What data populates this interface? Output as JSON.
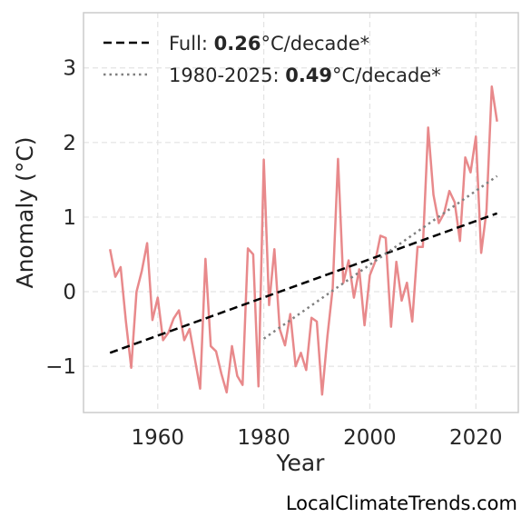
{
  "chart_data": {
    "type": "line",
    "xlabel": "Year",
    "ylabel": "Anomaly (°C)",
    "xlim": [
      1946,
      2028
    ],
    "ylim": [
      -1.62,
      3.74
    ],
    "x_ticks": [
      1960,
      1980,
      2000,
      2020
    ],
    "y_ticks": [
      -1,
      0,
      1,
      2,
      3
    ],
    "y_tick_labels": [
      "−1",
      "0",
      "1",
      "2",
      "3"
    ],
    "grid": true,
    "legend_position": "top-left",
    "series": [
      {
        "kind": "observed",
        "color": "#e8898b",
        "x": [
          1951,
          1952,
          1953,
          1954,
          1955,
          1956,
          1957,
          1958,
          1959,
          1960,
          1961,
          1962,
          1963,
          1964,
          1965,
          1966,
          1967,
          1968,
          1969,
          1970,
          1971,
          1972,
          1973,
          1974,
          1975,
          1976,
          1977,
          1978,
          1979,
          1980,
          1981,
          1982,
          1983,
          1984,
          1985,
          1986,
          1987,
          1988,
          1989,
          1990,
          1991,
          1992,
          1993,
          1994,
          1995,
          1996,
          1997,
          1998,
          1999,
          2000,
          2001,
          2002,
          2003,
          2004,
          2005,
          2006,
          2007,
          2008,
          2009,
          2010,
          2011,
          2012,
          2013,
          2014,
          2015,
          2016,
          2017,
          2018,
          2019,
          2020,
          2021,
          2022,
          2023,
          2024
        ],
        "values": [
          0.57,
          0.2,
          0.33,
          -0.4,
          -1.02,
          0.0,
          0.28,
          0.65,
          -0.38,
          -0.08,
          -0.65,
          -0.55,
          -0.36,
          -0.25,
          -0.65,
          -0.5,
          -0.9,
          -1.3,
          0.44,
          -0.73,
          -0.8,
          -1.1,
          -1.35,
          -0.73,
          -1.13,
          -1.25,
          0.58,
          0.5,
          -1.27,
          1.77,
          -0.18,
          0.57,
          -0.5,
          -0.72,
          -0.3,
          -1.0,
          -0.82,
          -1.05,
          -0.35,
          -0.4,
          -1.38,
          -0.6,
          0.05,
          1.78,
          0.12,
          0.42,
          -0.08,
          0.3,
          -0.45,
          0.22,
          0.4,
          0.75,
          0.72,
          -0.47,
          0.4,
          -0.12,
          0.12,
          -0.4,
          0.6,
          0.6,
          2.2,
          1.3,
          0.92,
          1.05,
          1.35,
          1.2,
          0.68,
          1.8,
          1.6,
          2.08,
          0.52,
          1.08,
          2.75,
          2.28
        ]
      },
      {
        "kind": "trend-full",
        "color": "#000000",
        "x": [
          1951,
          2024
        ],
        "values": [
          -0.82,
          1.05
        ]
      },
      {
        "kind": "trend-1980",
        "color": "#808080",
        "x": [
          1980,
          2024
        ],
        "values": [
          -0.63,
          1.55
        ]
      }
    ],
    "legend": [
      {
        "prefix": "Full: ",
        "bold": "0.26",
        "suffix": "°C/decade*"
      },
      {
        "prefix": "1980-2025: ",
        "bold": "0.49",
        "suffix": "°C/decade*"
      }
    ]
  },
  "footer": "LocalClimateTrends.com"
}
